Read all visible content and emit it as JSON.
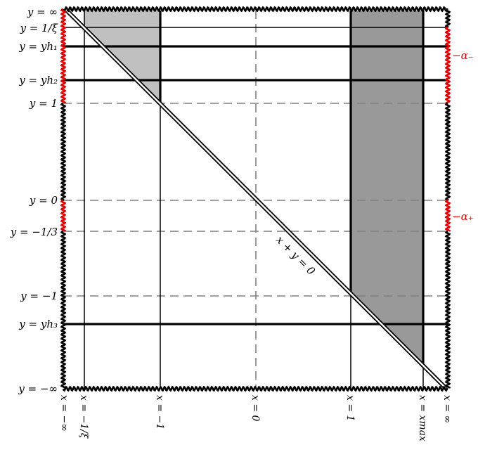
{
  "y_labels": {
    "inf": "y = ∞",
    "one_over_xi": "y = 1/ξ",
    "yh1": "y = yh₁",
    "yh2": "y = yh₂",
    "one": "y = 1",
    "zero": "y = 0",
    "minus_third": "y = −1/3",
    "minus_one": "y = −1",
    "yh3": "y = yh₃",
    "minus_inf": "y = −∞"
  },
  "x_labels": {
    "minus_inf": "x = −∞",
    "minus_one_over_xi": "x = −1/ξ",
    "minus_one": "x = −1",
    "zero": "x = 0",
    "one": "x = 1",
    "xmax": "x = xmax",
    "inf": "x = ∞"
  },
  "right_labels": {
    "alpha_minus": "−α₋",
    "alpha_plus": "−α₊"
  },
  "diagonal_label": "x + y = 0",
  "colors": {
    "boundary": "#000000",
    "red_boundary": "#e00000",
    "light_region": "#c0c0c0",
    "dark_region": "#999999",
    "dashed": "#808080"
  }
}
